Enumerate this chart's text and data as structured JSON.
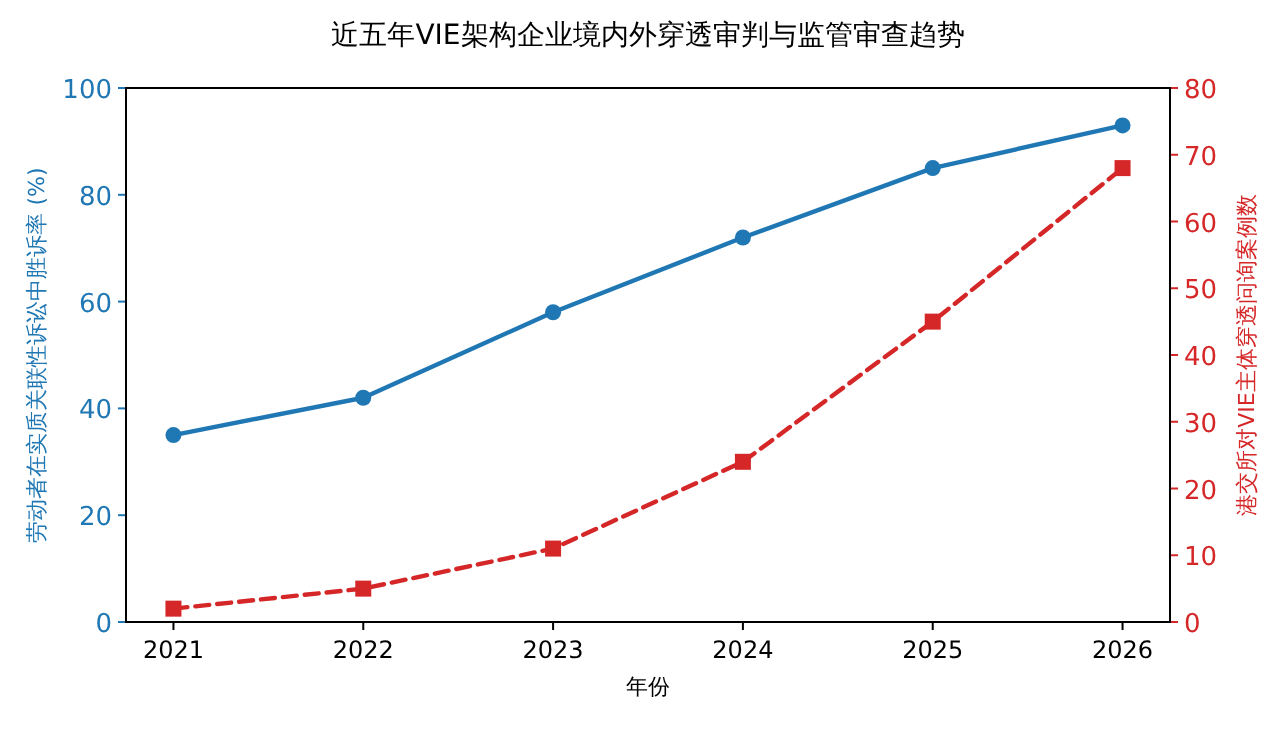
{
  "chart_data": {
    "type": "line",
    "title": "近五年VIE架构企业境内外穿透审判与监管审查趋势",
    "xlabel": "年份",
    "ylabel": "劳动者在实质关联性诉讼中胜诉率 (%)",
    "y2label": "港交所对VIE主体穿透问询案例数",
    "x": [
      2021,
      2022,
      2023,
      2024,
      2025,
      2026
    ],
    "xlim": [
      2020.75,
      2026.25
    ],
    "xticks": [
      2021,
      2022,
      2023,
      2024,
      2025,
      2026
    ],
    "ylim": [
      0,
      100
    ],
    "yticks": [
      0,
      20,
      40,
      60,
      80,
      100
    ],
    "y2lim": [
      0,
      80
    ],
    "y2ticks": [
      0,
      10,
      20,
      30,
      40,
      50,
      60,
      70,
      80
    ],
    "series": [
      {
        "color": "#1f77b4",
        "values": [
          35,
          42,
          58,
          72,
          85,
          93
        ],
        "marker": "circle",
        "line_style": "solid"
      },
      {
        "color": "#d62728",
        "values": [
          2,
          5,
          11,
          24,
          45,
          68
        ],
        "axis": "y2",
        "marker": "square",
        "line_style": "dashed"
      }
    ]
  }
}
